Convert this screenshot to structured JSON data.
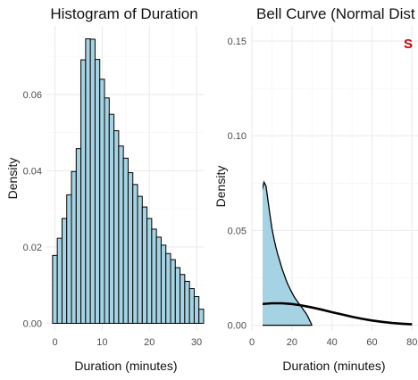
{
  "chart_data": [
    {
      "type": "bar",
      "title": "Histogram of Duration",
      "xlabel": "Duration (minutes)",
      "ylabel": "Density",
      "xlim": [
        -1.8,
        31.5
      ],
      "ylim": [
        -0.002,
        0.078
      ],
      "xticks": [
        0,
        10,
        20,
        30
      ],
      "yticks": [
        0.0,
        0.02,
        0.04,
        0.06
      ],
      "ytick_labels": [
        "0.00",
        "0.02",
        "0.04",
        "0.06"
      ],
      "grid": true,
      "bin_width": 1,
      "bin_start": -0.5,
      "fill_color": "#a6d3e3",
      "edge_color": "#000000",
      "values": [
        0.0178,
        0.0223,
        0.0275,
        0.0337,
        0.0398,
        0.0458,
        0.0691,
        0.0746,
        0.0745,
        0.0692,
        0.064,
        0.0591,
        0.0548,
        0.0505,
        0.0465,
        0.0433,
        0.0395,
        0.0364,
        0.0333,
        0.0305,
        0.0275,
        0.0247,
        0.0226,
        0.0205,
        0.0183,
        0.0167,
        0.0146,
        0.0128,
        0.011,
        0.0091,
        0.007,
        0.0037
      ]
    },
    {
      "type": "area",
      "title": "Bell Curve (Normal Dist",
      "xlabel": "Duration (minutes)",
      "ylabel": "Density",
      "xlim": [
        -0.5,
        83
      ],
      "ylim": [
        -0.003,
        0.158
      ],
      "xticks": [
        0,
        20,
        40,
        60,
        80
      ],
      "yticks": [
        0.0,
        0.05,
        0.1,
        0.15
      ],
      "ytick_labels": [
        "0.00",
        "0.05",
        "0.10",
        "0.15"
      ],
      "grid": true,
      "annotation": "S",
      "annotation_color": "#cc0000",
      "series": [
        {
          "kind": "density",
          "fill_color": "#a6d3e3",
          "line_color": "#000000",
          "x": [
            0,
            0.4,
            1,
            1.5,
            2,
            3,
            4,
            5,
            6,
            7,
            8,
            9,
            10,
            11,
            12,
            13,
            14,
            15,
            16,
            17,
            18,
            19,
            20,
            21,
            22,
            23,
            24,
            25,
            26,
            27,
            28,
            29,
            30
          ],
          "y": [
            0.019,
            0.024,
            0.022,
            0.026,
            0.032,
            0.043,
            0.058,
            0.071,
            0.0755,
            0.0735,
            0.066,
            0.058,
            0.051,
            0.0455,
            0.041,
            0.037,
            0.0335,
            0.03,
            0.027,
            0.024,
            0.0215,
            0.0192,
            0.0172,
            0.0152,
            0.0136,
            0.0121,
            0.0107,
            0.0093,
            0.0078,
            0.0063,
            0.0045,
            0.0022,
            0.0
          ]
        },
        {
          "kind": "normal",
          "line_color": "#000000",
          "x": [
            0,
            5,
            10,
            15,
            20,
            25,
            30,
            35,
            40,
            45,
            50,
            55,
            60,
            65,
            70,
            75,
            80
          ],
          "y": [
            0.0103,
            0.0112,
            0.0116,
            0.0116,
            0.0112,
            0.0104,
            0.0094,
            0.0082,
            0.0069,
            0.0057,
            0.0045,
            0.0034,
            0.0025,
            0.0018,
            0.0012,
            0.0008,
            0.0005
          ]
        }
      ]
    }
  ]
}
